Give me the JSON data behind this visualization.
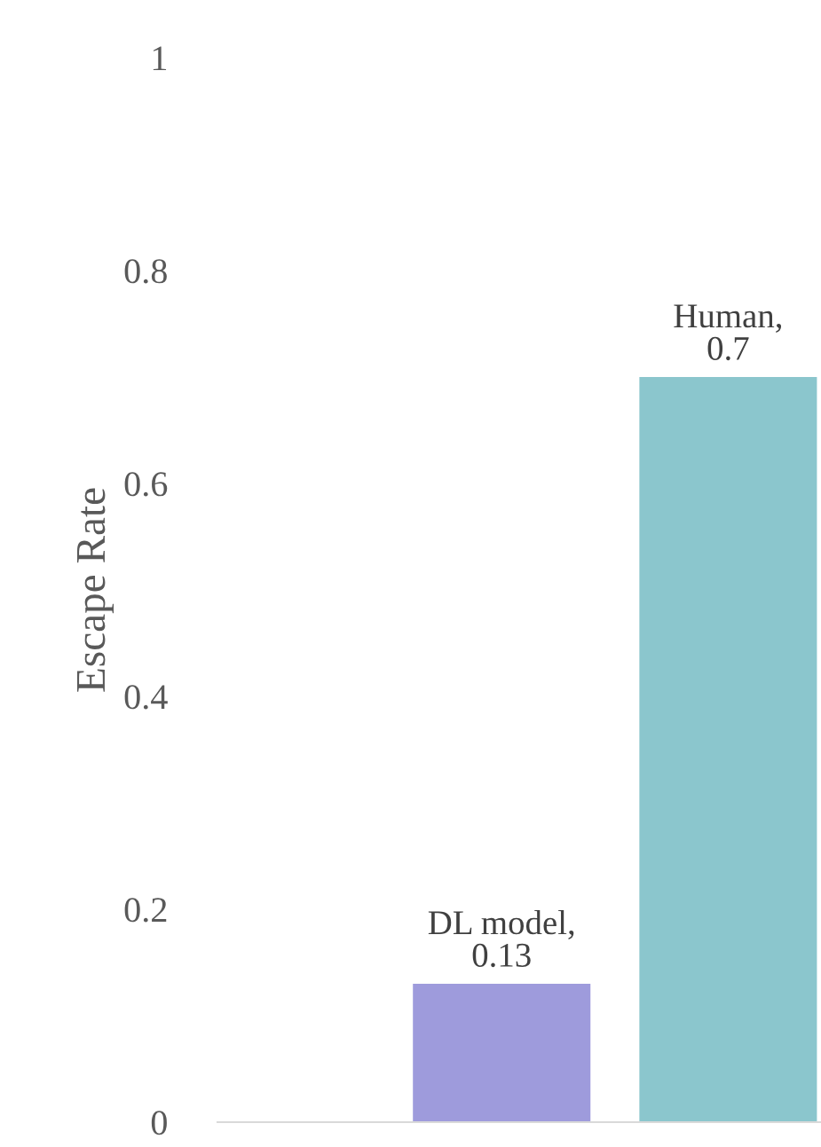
{
  "chart_data": {
    "type": "bar",
    "ylabel": "Escape Rate",
    "categories": [
      null,
      null,
      null
    ],
    "values": [
      null,
      0.13,
      0.7
    ],
    "colors": [
      "#9e9bdc",
      "#9e9bdc",
      "#8bc6cd"
    ],
    "value_labels": [
      null,
      "DL model,\n0.13",
      "Human,\n0.7"
    ],
    "ylim": [
      0,
      1
    ],
    "yticks": [
      0,
      0.2,
      0.4,
      0.6,
      0.8,
      1
    ],
    "grid": false,
    "legend": false
  }
}
